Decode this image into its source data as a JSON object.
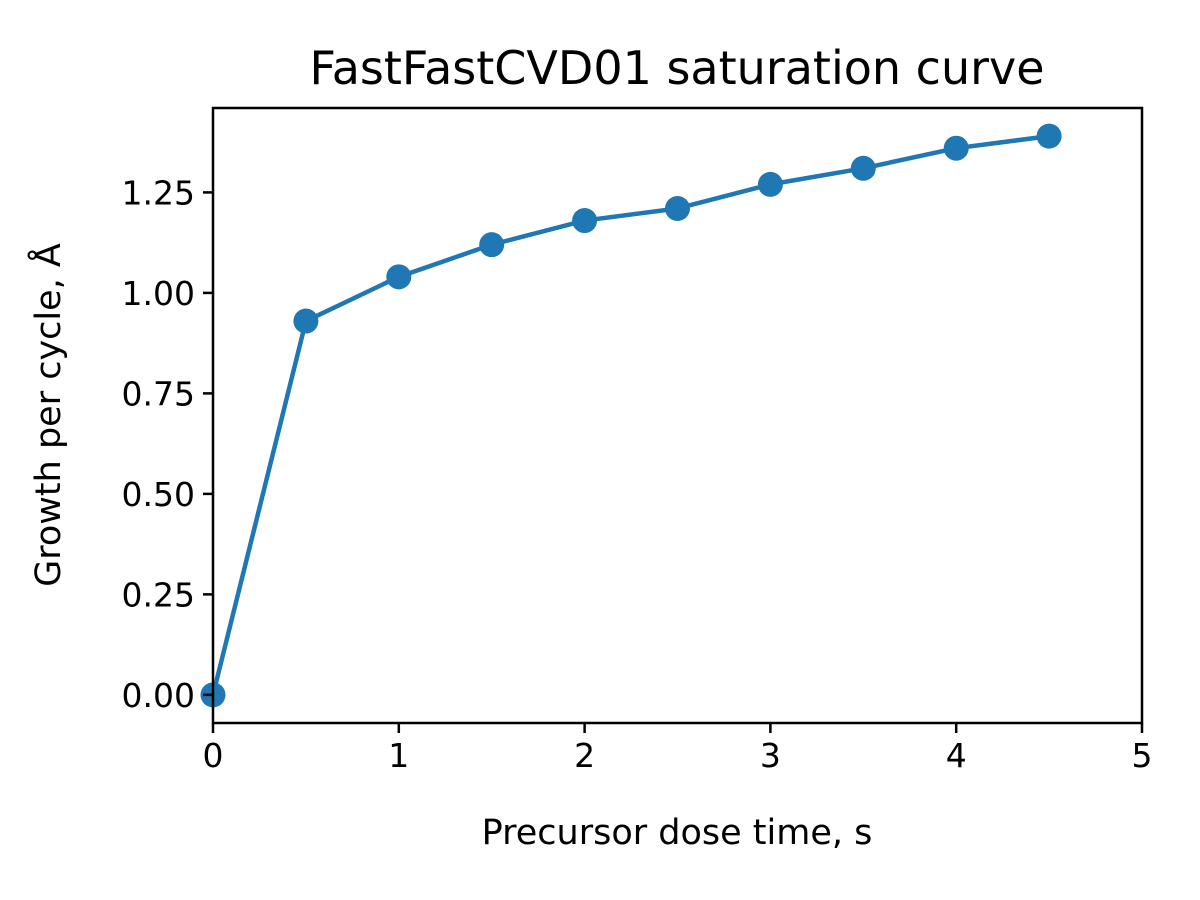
{
  "chart_data": {
    "type": "line",
    "title": "FastFastCVD01 saturation curve",
    "xlabel": "Precursor dose time, s",
    "ylabel": "Growth per cycle, Å",
    "xlim": [
      0,
      5
    ],
    "ylim": [
      -0.07,
      1.46
    ],
    "xticks": [
      0,
      1,
      2,
      3,
      4,
      5
    ],
    "xtick_labels": [
      "0",
      "1",
      "2",
      "3",
      "4",
      "5"
    ],
    "yticks": [
      0,
      0.25,
      0.5,
      0.75,
      1.0,
      1.25
    ],
    "ytick_labels": [
      "0.00",
      "0.25",
      "0.50",
      "0.75",
      "1.00",
      "1.25"
    ],
    "grid": false,
    "series": [
      {
        "color": "#1f77b4",
        "marker": "circle",
        "x": [
          0,
          0.5,
          1.0,
          1.5,
          2.0,
          2.5,
          3.0,
          3.5,
          4.0,
          4.5
        ],
        "y": [
          0.0,
          0.93,
          1.04,
          1.12,
          1.18,
          1.21,
          1.27,
          1.31,
          1.36,
          1.39
        ]
      }
    ]
  }
}
